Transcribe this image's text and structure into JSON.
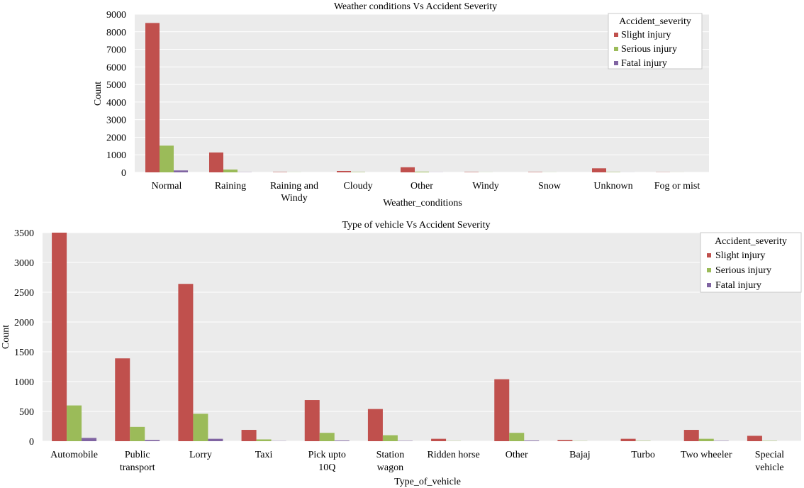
{
  "colors": {
    "plot_bg": "#ebebeb",
    "grid": "#ffffff",
    "legend_bg": "#ffffff",
    "legend_border": "#c8c8c8"
  },
  "chart_data": [
    {
      "type": "bar",
      "title": "Weather conditions Vs Accident Severity",
      "xlabel": "Weather_conditions",
      "ylabel": "Count",
      "ylim": [
        0,
        9000
      ],
      "yticks": [
        0,
        1000,
        2000,
        3000,
        4000,
        5000,
        6000,
        7000,
        8000,
        9000
      ],
      "grid": true,
      "legend": {
        "title": "Accident_severity",
        "placement": "top-right"
      },
      "categories": [
        "Normal",
        "Raining",
        "Raining and Windy",
        "Cloudy",
        "Other",
        "Windy",
        "Snow",
        "Unknown",
        "Fog or mist"
      ],
      "category_lines": [
        [
          "Normal"
        ],
        [
          "Raining"
        ],
        [
          "Raining and",
          "Windy"
        ],
        [
          "Cloudy"
        ],
        [
          "Other"
        ],
        [
          "Windy"
        ],
        [
          "Snow"
        ],
        [
          "Unknown"
        ],
        [
          "Fog or mist"
        ]
      ],
      "series": [
        {
          "name": "Slight injury",
          "color": "#c0504d",
          "values": [
            8500,
            1130,
            20,
            80,
            290,
            20,
            20,
            230,
            10
          ]
        },
        {
          "name": "Serious injury",
          "color": "#9bbb59",
          "values": [
            1520,
            160,
            5,
            20,
            40,
            5,
            5,
            20,
            3
          ]
        },
        {
          "name": "Fatal injury",
          "color": "#8064a2",
          "values": [
            110,
            10,
            0,
            0,
            5,
            0,
            0,
            3,
            0
          ]
        }
      ]
    },
    {
      "type": "bar",
      "title": "Type of vehicle Vs Accident Severity",
      "xlabel": "Type_of_vehicle",
      "ylabel": "Count",
      "ylim": [
        0,
        3500
      ],
      "yticks": [
        0,
        500,
        1000,
        1500,
        2000,
        2500,
        3000,
        3500
      ],
      "grid": true,
      "legend": {
        "title": "Accident_severity",
        "placement": "top-right"
      },
      "categories": [
        "Automobile",
        "Public transport",
        "Lorry",
        "Taxi",
        "Pick upto 10Q",
        "Station wagon",
        "Ridden horse",
        "Other",
        "Bajaj",
        "Turbo",
        "Two wheeler",
        "Special vehicle"
      ],
      "category_lines": [
        [
          "Automobile"
        ],
        [
          "Public",
          "transport"
        ],
        [
          "Lorry"
        ],
        [
          "Taxi"
        ],
        [
          "Pick upto",
          "10Q"
        ],
        [
          "Station",
          "wagon"
        ],
        [
          "Ridden horse"
        ],
        [
          "Other"
        ],
        [
          "Bajaj"
        ],
        [
          "Turbo"
        ],
        [
          "Two wheeler"
        ],
        [
          "Special",
          "vehicle"
        ]
      ],
      "series": [
        {
          "name": "Slight injury",
          "color": "#c0504d",
          "values": [
            3500,
            1390,
            2640,
            190,
            690,
            540,
            40,
            1040,
            20,
            40,
            190,
            90
          ]
        },
        {
          "name": "Serious injury",
          "color": "#9bbb59",
          "values": [
            600,
            240,
            460,
            30,
            140,
            100,
            3,
            140,
            3,
            5,
            40,
            5
          ]
        },
        {
          "name": "Fatal injury",
          "color": "#8064a2",
          "values": [
            55,
            20,
            40,
            3,
            10,
            5,
            0,
            10,
            0,
            0,
            5,
            0
          ]
        }
      ]
    }
  ]
}
